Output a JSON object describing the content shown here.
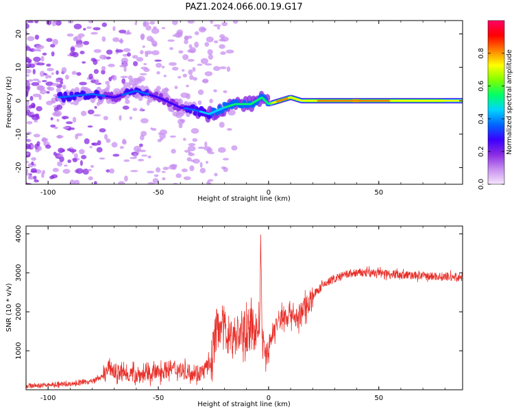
{
  "figure_title": "PAZ1.2024.066.00.19.G17",
  "chart_data": [
    {
      "type": "heatmap",
      "title": "",
      "xlabel": "Height of straight line (km)",
      "ylabel": "Frequency (Hz)",
      "xlim": [
        -110,
        88
      ],
      "ylim": [
        -25,
        24
      ],
      "x_ticks": [
        -100,
        -50,
        0,
        50
      ],
      "y_ticks": [
        -20,
        -10,
        0,
        10,
        20
      ],
      "colorbar": {
        "label": "Normalized spectral amplitude",
        "range": [
          0.0,
          1.0
        ],
        "ticks": [
          0.0,
          0.2,
          0.4,
          0.6,
          0.8
        ],
        "tick_labels": [
          "0.0",
          "0.2",
          "0.4",
          "0.6",
          "0.8"
        ],
        "colormap": [
          "#f5e6fb",
          "#c890f0",
          "#8a2be2",
          "#3a00ff",
          "#0066ff",
          "#00d4ff",
          "#00ff66",
          "#80ff00",
          "#ffff00",
          "#ff8000",
          "#ff0000",
          "#ff0066"
        ]
      },
      "ridge": {
        "description_points": [
          {
            "x": -95,
            "freq": 1,
            "amp": 0.35
          },
          {
            "x": -80,
            "freq": 2,
            "amp": 0.35
          },
          {
            "x": -70,
            "freq": 1,
            "amp": 0.3
          },
          {
            "x": -60,
            "freq": 3,
            "amp": 0.35
          },
          {
            "x": -50,
            "freq": 1,
            "amp": 0.3
          },
          {
            "x": -40,
            "freq": -2,
            "amp": 0.3
          },
          {
            "x": -32,
            "freq": -3,
            "amp": 0.4
          },
          {
            "x": -27,
            "freq": -4,
            "amp": 0.45
          },
          {
            "x": -20,
            "freq": -2,
            "amp": 0.5
          },
          {
            "x": -15,
            "freq": -1,
            "amp": 0.55
          },
          {
            "x": -8,
            "freq": -1,
            "amp": 0.55
          },
          {
            "x": -3,
            "freq": 1,
            "amp": 0.5
          },
          {
            "x": 0,
            "freq": -1,
            "amp": 0.55
          },
          {
            "x": 5,
            "freq": 0,
            "amp": 0.85
          },
          {
            "x": 10,
            "freq": 1,
            "amp": 0.75
          },
          {
            "x": 15,
            "freq": 0,
            "amp": 0.7
          },
          {
            "x": 25,
            "freq": 0,
            "amp": 0.8
          },
          {
            "x": 40,
            "freq": 0,
            "amp": 0.85
          },
          {
            "x": 60,
            "freq": 0,
            "amp": 0.75
          },
          {
            "x": 88,
            "freq": 0,
            "amp": 0.7
          }
        ]
      }
    },
    {
      "type": "line",
      "title": "",
      "xlabel": "Height of straight line (km)",
      "ylabel": "SNR (10 * v/v)",
      "xlim": [
        -110,
        88
      ],
      "ylim": [
        0,
        4200
      ],
      "x_ticks": [
        -100,
        -50,
        0,
        50
      ],
      "y_ticks": [
        1000,
        2000,
        3000,
        4000
      ],
      "color": "#e8302a",
      "series": [
        {
          "x": [
            -110,
            -100,
            -90,
            -80,
            -75,
            -72,
            -70,
            -65,
            -60,
            -55,
            -50,
            -45,
            -40,
            -35,
            -30,
            -26,
            -24,
            -22,
            -20,
            -18,
            -15,
            -12,
            -10,
            -8,
            -6,
            -5,
            -4,
            -3.5,
            -3,
            -2.5,
            -2,
            -1,
            0,
            2,
            5,
            8,
            10,
            13,
            15,
            20,
            25,
            30,
            35,
            40,
            50,
            60,
            70,
            80,
            88
          ],
          "y": [
            100,
            120,
            150,
            220,
            350,
            600,
            450,
            420,
            380,
            400,
            450,
            550,
            500,
            450,
            450,
            700,
            1500,
            1700,
            1600,
            1400,
            1400,
            1450,
            1500,
            1550,
            1550,
            1500,
            1900,
            4000,
            1500,
            1100,
            1000,
            900,
            1050,
            1500,
            1800,
            1900,
            2000,
            1800,
            2000,
            2400,
            2700,
            2850,
            2950,
            3000,
            3000,
            2950,
            2920,
            2900,
            2880
          ]
        }
      ]
    }
  ]
}
